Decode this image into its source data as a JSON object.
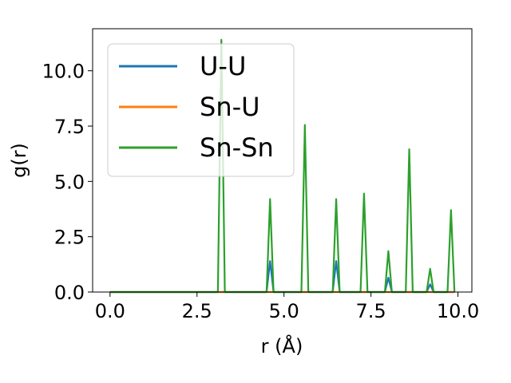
{
  "chart_data": {
    "type": "line",
    "xlabel": "r (Å)",
    "ylabel": "g(r)",
    "xlim": [
      -0.5,
      10.4
    ],
    "ylim": [
      0,
      11.9
    ],
    "xticks": [
      0.0,
      2.5,
      5.0,
      7.5,
      10.0
    ],
    "xtick_labels": [
      "0.0",
      "2.5",
      "5.0",
      "7.5",
      "10.0"
    ],
    "yticks": [
      0.0,
      2.5,
      5.0,
      7.5,
      10.0
    ],
    "ytick_labels": [
      "0.0",
      "2.5",
      "5.0",
      "7.5",
      "10.0"
    ],
    "grid": false,
    "legend_position": "top-left",
    "series": [
      {
        "name": "U-U",
        "color": "#1f77b4",
        "x": [
          0.0,
          4.5,
          4.6,
          4.7,
          6.4,
          6.5,
          6.6,
          7.9,
          8.0,
          8.1,
          9.1,
          9.2,
          9.3,
          9.9
        ],
        "y": [
          0.0,
          0.0,
          1.4,
          0.0,
          0.0,
          1.4,
          0.0,
          0.0,
          0.65,
          0.0,
          0.0,
          0.35,
          0.0,
          0.0
        ]
      },
      {
        "name": "Sn-U",
        "color": "#ff7f0e",
        "x": [
          0.0,
          9.9
        ],
        "y": [
          0.0,
          0.0
        ]
      },
      {
        "name": "Sn-Sn",
        "color": "#2ca02c",
        "x": [
          0.0,
          3.1,
          3.2,
          3.3,
          4.5,
          4.6,
          4.7,
          5.5,
          5.6,
          5.7,
          6.4,
          6.5,
          6.6,
          7.2,
          7.3,
          7.4,
          7.9,
          8.0,
          8.1,
          8.5,
          8.6,
          8.7,
          9.1,
          9.2,
          9.3,
          9.7,
          9.8,
          9.9
        ],
        "y": [
          0.0,
          0.0,
          11.4,
          0.0,
          0.0,
          4.2,
          0.0,
          0.0,
          7.55,
          0.0,
          0.0,
          4.2,
          0.0,
          0.0,
          4.45,
          0.0,
          0.0,
          1.85,
          0.0,
          0.0,
          6.45,
          0.0,
          0.0,
          1.05,
          0.0,
          0.0,
          3.7,
          0.0
        ]
      }
    ]
  }
}
